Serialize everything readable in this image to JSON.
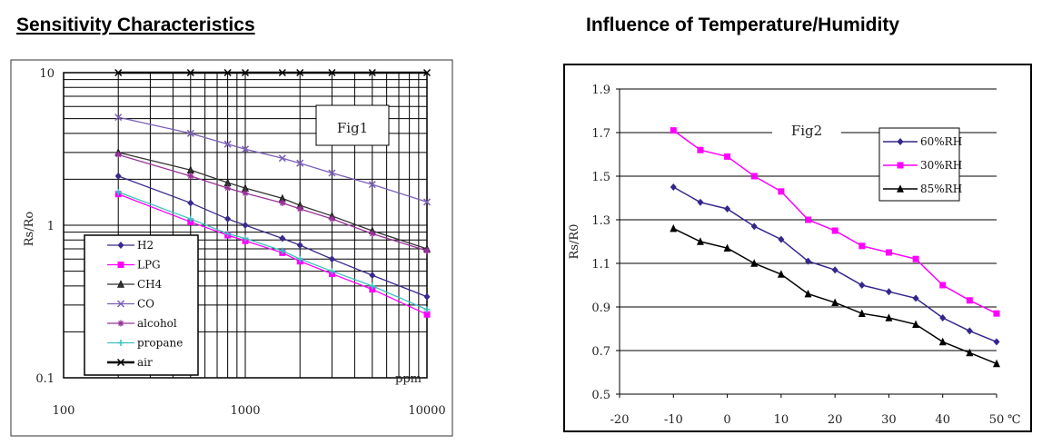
{
  "headings": {
    "left": "Sensitivity Characteristics",
    "right": "Influence of Temperature/Humidity"
  },
  "chart_data": [
    {
      "type": "line",
      "scale": "log-log",
      "fig_label": "Fig1",
      "xlabel": "ppm",
      "ylabel": "Rs/Ro",
      "xlim": [
        100,
        10000
      ],
      "ylim": [
        0.1,
        10
      ],
      "x_ticks": [
        "100",
        "1000",
        "10000"
      ],
      "y_ticks": [
        "0.1",
        "1",
        "10"
      ],
      "grid": true,
      "legend_position": "bottom-left",
      "x": [
        200,
        500,
        800,
        1000,
        1600,
        2000,
        3000,
        5000,
        10000
      ],
      "series": [
        {
          "name": "H2",
          "color": "#3a2a8c",
          "marker": "diamond",
          "values": [
            2.1,
            1.4,
            1.1,
            1.0,
            0.82,
            0.74,
            0.6,
            0.47,
            0.34
          ]
        },
        {
          "name": "LPG",
          "color": "#ff00ff",
          "marker": "square",
          "values": [
            1.6,
            1.05,
            0.86,
            0.79,
            0.66,
            0.58,
            0.48,
            0.38,
            0.26
          ]
        },
        {
          "name": "CH4",
          "color": "#333333",
          "marker": "triangle",
          "values": [
            3.0,
            2.3,
            1.9,
            1.75,
            1.5,
            1.35,
            1.15,
            0.92,
            0.7
          ]
        },
        {
          "name": "CO",
          "color": "#7b5fb8",
          "marker": "x",
          "values": [
            5.1,
            4.0,
            3.4,
            3.15,
            2.75,
            2.55,
            2.2,
            1.85,
            1.42
          ]
        },
        {
          "name": "alcohol",
          "color": "#993399",
          "marker": "star",
          "values": [
            2.9,
            2.1,
            1.75,
            1.62,
            1.4,
            1.28,
            1.1,
            0.88,
            0.68
          ]
        },
        {
          "name": "propane",
          "color": "#40c0c0",
          "marker": "plus",
          "values": [
            1.65,
            1.1,
            0.88,
            0.82,
            0.68,
            0.6,
            0.5,
            0.4,
            0.28
          ]
        },
        {
          "name": "air",
          "color": "#000000",
          "marker": "x",
          "values": [
            10,
            10,
            10,
            10,
            10,
            10,
            10,
            10,
            10
          ]
        }
      ]
    },
    {
      "type": "line",
      "fig_label": "Fig2",
      "xlabel": "",
      "ylabel": "Rs/R0",
      "xlim": [
        -20,
        50
      ],
      "ylim": [
        0.5,
        1.9
      ],
      "x_ticks": [
        "-20",
        "-10",
        "0",
        "10",
        "20",
        "30",
        "40",
        "50"
      ],
      "x_unit": "℃",
      "y_ticks": [
        "0.5",
        "0.7",
        "0.9",
        "1.1",
        "1.3",
        "1.5",
        "1.7",
        "1.9"
      ],
      "grid": "horizontal",
      "legend_position": "top-right",
      "x": [
        -10,
        -5,
        0,
        5,
        10,
        15,
        20,
        25,
        30,
        35,
        40,
        45,
        50
      ],
      "series": [
        {
          "name": "60%RH",
          "color": "#33268c",
          "marker": "diamond",
          "values": [
            1.45,
            1.38,
            1.35,
            1.27,
            1.21,
            1.11,
            1.07,
            1.0,
            0.97,
            0.94,
            0.85,
            0.79,
            0.74
          ]
        },
        {
          "name": "30%RH",
          "color": "#ff00ff",
          "marker": "square",
          "values": [
            1.71,
            1.62,
            1.59,
            1.5,
            1.43,
            1.3,
            1.25,
            1.18,
            1.15,
            1.12,
            1.0,
            0.93,
            0.87
          ]
        },
        {
          "name": "85%RH",
          "color": "#000000",
          "marker": "triangle",
          "values": [
            1.26,
            1.2,
            1.17,
            1.1,
            1.05,
            0.96,
            0.92,
            0.87,
            0.85,
            0.82,
            0.74,
            0.69,
            0.64
          ]
        }
      ]
    }
  ]
}
